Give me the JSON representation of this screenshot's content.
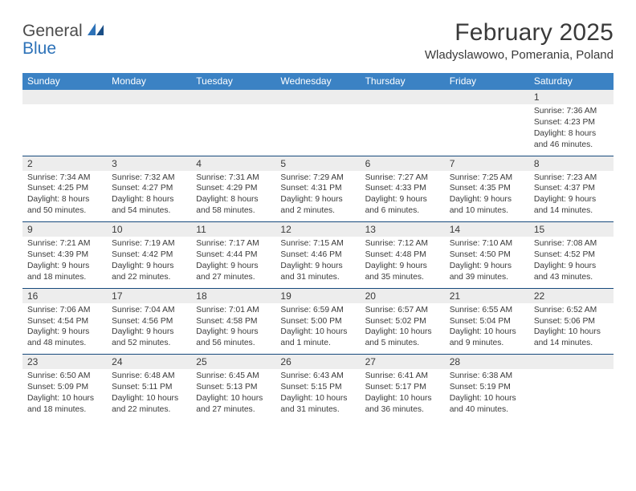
{
  "logo": {
    "line1": "General",
    "line2": "Blue"
  },
  "title": "February 2025",
  "location": "Wladyslawowo, Pomerania, Poland",
  "colors": {
    "header_bg": "#3b82c4",
    "header_text": "#ffffff",
    "grey_strip": "#ededed",
    "divider": "#174a7c",
    "text": "#3a3a3a",
    "logo_blue": "#2d72b8"
  },
  "day_names": [
    "Sunday",
    "Monday",
    "Tuesday",
    "Wednesday",
    "Thursday",
    "Friday",
    "Saturday"
  ],
  "weeks": [
    [
      {
        "day": null
      },
      {
        "day": null
      },
      {
        "day": null
      },
      {
        "day": null
      },
      {
        "day": null
      },
      {
        "day": null
      },
      {
        "day": 1,
        "sunrise": "Sunrise: 7:36 AM",
        "sunset": "Sunset: 4:23 PM",
        "daylight": "Daylight: 8 hours and 46 minutes."
      }
    ],
    [
      {
        "day": 2,
        "sunrise": "Sunrise: 7:34 AM",
        "sunset": "Sunset: 4:25 PM",
        "daylight": "Daylight: 8 hours and 50 minutes."
      },
      {
        "day": 3,
        "sunrise": "Sunrise: 7:32 AM",
        "sunset": "Sunset: 4:27 PM",
        "daylight": "Daylight: 8 hours and 54 minutes."
      },
      {
        "day": 4,
        "sunrise": "Sunrise: 7:31 AM",
        "sunset": "Sunset: 4:29 PM",
        "daylight": "Daylight: 8 hours and 58 minutes."
      },
      {
        "day": 5,
        "sunrise": "Sunrise: 7:29 AM",
        "sunset": "Sunset: 4:31 PM",
        "daylight": "Daylight: 9 hours and 2 minutes."
      },
      {
        "day": 6,
        "sunrise": "Sunrise: 7:27 AM",
        "sunset": "Sunset: 4:33 PM",
        "daylight": "Daylight: 9 hours and 6 minutes."
      },
      {
        "day": 7,
        "sunrise": "Sunrise: 7:25 AM",
        "sunset": "Sunset: 4:35 PM",
        "daylight": "Daylight: 9 hours and 10 minutes."
      },
      {
        "day": 8,
        "sunrise": "Sunrise: 7:23 AM",
        "sunset": "Sunset: 4:37 PM",
        "daylight": "Daylight: 9 hours and 14 minutes."
      }
    ],
    [
      {
        "day": 9,
        "sunrise": "Sunrise: 7:21 AM",
        "sunset": "Sunset: 4:39 PM",
        "daylight": "Daylight: 9 hours and 18 minutes."
      },
      {
        "day": 10,
        "sunrise": "Sunrise: 7:19 AM",
        "sunset": "Sunset: 4:42 PM",
        "daylight": "Daylight: 9 hours and 22 minutes."
      },
      {
        "day": 11,
        "sunrise": "Sunrise: 7:17 AM",
        "sunset": "Sunset: 4:44 PM",
        "daylight": "Daylight: 9 hours and 27 minutes."
      },
      {
        "day": 12,
        "sunrise": "Sunrise: 7:15 AM",
        "sunset": "Sunset: 4:46 PM",
        "daylight": "Daylight: 9 hours and 31 minutes."
      },
      {
        "day": 13,
        "sunrise": "Sunrise: 7:12 AM",
        "sunset": "Sunset: 4:48 PM",
        "daylight": "Daylight: 9 hours and 35 minutes."
      },
      {
        "day": 14,
        "sunrise": "Sunrise: 7:10 AM",
        "sunset": "Sunset: 4:50 PM",
        "daylight": "Daylight: 9 hours and 39 minutes."
      },
      {
        "day": 15,
        "sunrise": "Sunrise: 7:08 AM",
        "sunset": "Sunset: 4:52 PM",
        "daylight": "Daylight: 9 hours and 43 minutes."
      }
    ],
    [
      {
        "day": 16,
        "sunrise": "Sunrise: 7:06 AM",
        "sunset": "Sunset: 4:54 PM",
        "daylight": "Daylight: 9 hours and 48 minutes."
      },
      {
        "day": 17,
        "sunrise": "Sunrise: 7:04 AM",
        "sunset": "Sunset: 4:56 PM",
        "daylight": "Daylight: 9 hours and 52 minutes."
      },
      {
        "day": 18,
        "sunrise": "Sunrise: 7:01 AM",
        "sunset": "Sunset: 4:58 PM",
        "daylight": "Daylight: 9 hours and 56 minutes."
      },
      {
        "day": 19,
        "sunrise": "Sunrise: 6:59 AM",
        "sunset": "Sunset: 5:00 PM",
        "daylight": "Daylight: 10 hours and 1 minute."
      },
      {
        "day": 20,
        "sunrise": "Sunrise: 6:57 AM",
        "sunset": "Sunset: 5:02 PM",
        "daylight": "Daylight: 10 hours and 5 minutes."
      },
      {
        "day": 21,
        "sunrise": "Sunrise: 6:55 AM",
        "sunset": "Sunset: 5:04 PM",
        "daylight": "Daylight: 10 hours and 9 minutes."
      },
      {
        "day": 22,
        "sunrise": "Sunrise: 6:52 AM",
        "sunset": "Sunset: 5:06 PM",
        "daylight": "Daylight: 10 hours and 14 minutes."
      }
    ],
    [
      {
        "day": 23,
        "sunrise": "Sunrise: 6:50 AM",
        "sunset": "Sunset: 5:09 PM",
        "daylight": "Daylight: 10 hours and 18 minutes."
      },
      {
        "day": 24,
        "sunrise": "Sunrise: 6:48 AM",
        "sunset": "Sunset: 5:11 PM",
        "daylight": "Daylight: 10 hours and 22 minutes."
      },
      {
        "day": 25,
        "sunrise": "Sunrise: 6:45 AM",
        "sunset": "Sunset: 5:13 PM",
        "daylight": "Daylight: 10 hours and 27 minutes."
      },
      {
        "day": 26,
        "sunrise": "Sunrise: 6:43 AM",
        "sunset": "Sunset: 5:15 PM",
        "daylight": "Daylight: 10 hours and 31 minutes."
      },
      {
        "day": 27,
        "sunrise": "Sunrise: 6:41 AM",
        "sunset": "Sunset: 5:17 PM",
        "daylight": "Daylight: 10 hours and 36 minutes."
      },
      {
        "day": 28,
        "sunrise": "Sunrise: 6:38 AM",
        "sunset": "Sunset: 5:19 PM",
        "daylight": "Daylight: 10 hours and 40 minutes."
      },
      {
        "day": null
      }
    ]
  ]
}
